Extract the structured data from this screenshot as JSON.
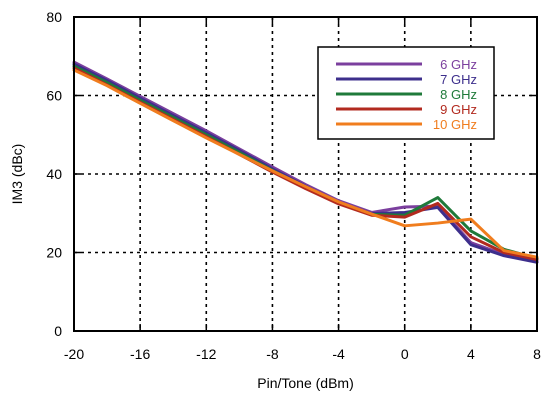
{
  "chart_data": {
    "type": "line",
    "title": "",
    "xlabel": "Pin/Tone (dBm)",
    "ylabel": "IM3 (dBc)",
    "xlim": [
      -20,
      8
    ],
    "ylim": [
      0,
      80
    ],
    "xticks": [
      -20,
      -16,
      -12,
      -8,
      -4,
      0,
      4,
      8
    ],
    "yticks": [
      0,
      20,
      40,
      60,
      80
    ],
    "grid": true,
    "grid_style": "dotted",
    "legend_position": "top-right",
    "series": [
      {
        "name": "6 GHz",
        "color": "#7b3f9e",
        "x": [
          -20,
          -18,
          -16,
          -14,
          -12,
          -10,
          -8,
          -6,
          -4,
          -2,
          0,
          2,
          4,
          6,
          8
        ],
        "y": [
          68.5,
          64.2,
          59.8,
          55.4,
          51.0,
          46.4,
          41.8,
          37.3,
          33.2,
          30.2,
          31.6,
          31.8,
          22.5,
          19.5,
          17.8
        ]
      },
      {
        "name": "7 GHz",
        "color": "#3d2f8c",
        "x": [
          -20,
          -18,
          -16,
          -14,
          -12,
          -10,
          -8,
          -6,
          -4,
          -2,
          0,
          2,
          4,
          6,
          8
        ],
        "y": [
          68.0,
          63.8,
          59.3,
          54.9,
          50.5,
          46.0,
          41.3,
          36.9,
          32.8,
          29.9,
          30.2,
          31.5,
          22.0,
          19.2,
          17.5
        ]
      },
      {
        "name": "8 GHz",
        "color": "#1f7a3a",
        "x": [
          -20,
          -18,
          -16,
          -14,
          -12,
          -10,
          -8,
          -6,
          -4,
          -2,
          0,
          2,
          4,
          6,
          8
        ],
        "y": [
          67.5,
          63.3,
          58.8,
          54.4,
          50.0,
          45.5,
          40.9,
          36.6,
          32.6,
          29.7,
          29.5,
          34.0,
          25.5,
          20.8,
          18.5
        ]
      },
      {
        "name": "9 GHz",
        "color": "#b22a1f",
        "x": [
          -20,
          -18,
          -16,
          -14,
          -12,
          -10,
          -8,
          -6,
          -4,
          -2,
          0,
          2,
          4,
          6,
          8
        ],
        "y": [
          67.0,
          62.7,
          58.3,
          53.9,
          49.5,
          45.0,
          40.5,
          36.3,
          32.4,
          29.5,
          29.0,
          32.5,
          24.0,
          20.0,
          18.2
        ]
      },
      {
        "name": "10 GHz",
        "color": "#f07d1e",
        "x": [
          -20,
          -18,
          -16,
          -14,
          -12,
          -10,
          -8,
          -6,
          -4,
          -2,
          0,
          2,
          4,
          6,
          8
        ],
        "y": [
          66.5,
          62.5,
          58.0,
          53.6,
          49.2,
          45.0,
          40.8,
          36.8,
          32.9,
          29.8,
          26.8,
          27.5,
          28.5,
          20.5,
          18.8
        ]
      }
    ]
  }
}
